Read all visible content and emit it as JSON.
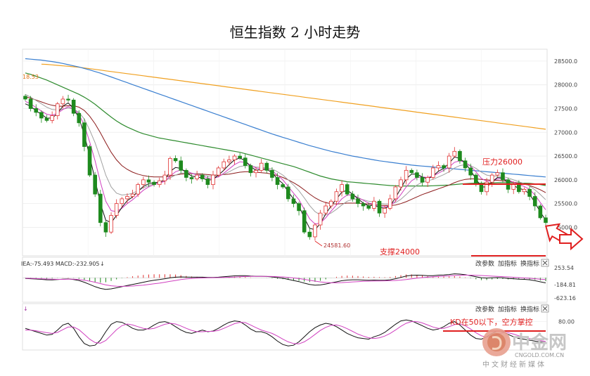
{
  "title": "恒生指数 2 小时走势",
  "colors": {
    "up": "#e03030",
    "down": "#1e8a1e",
    "ma_black": "#111111",
    "ma_magenta": "#d040c0",
    "ma_gray": "#a0a0a0",
    "ma_darkred": "#8b1a1a",
    "ma_green": "#2e8b2e",
    "ma_blue": "#3a7fd0",
    "ma_orange": "#f0a020",
    "annotation": "#e02020"
  },
  "main_panel": {
    "corner_value": "18.53",
    "y_ticks": [
      "28500.0",
      "28000.0",
      "27500.0",
      "27000.0",
      "26500.0",
      "26000.0",
      "25500.0",
      "25000.0"
    ],
    "ylim": [
      24400,
      28750
    ],
    "low_label": "24581.60",
    "resistance_label": "压力26000",
    "resistance_level": 25980,
    "support_label": "支撑24000"
  },
  "macd_panel": {
    "legend": "IEA:-75.493  MACD:-232.905",
    "buttons": [
      "改参数",
      "加指标",
      "换指标"
    ],
    "y_ticks": [
      "253.54",
      "-184.81",
      "-623.16"
    ]
  },
  "kdj_panel": {
    "buttons": [
      "改参数",
      "加指标",
      "换指标"
    ],
    "y_ticks": [
      "80.00"
    ],
    "annotation": "KD在50以下，空方掌控"
  },
  "watermark": {
    "name": "中金网",
    "domain": "CNGOLD.COM.CN",
    "subtitle": "中文财经新媒体"
  },
  "chart_data": {
    "type": "candlestick",
    "title": "恒生指数 2 小时走势",
    "close": [
      27700,
      27500,
      27420,
      27300,
      27250,
      27350,
      27600,
      27700,
      27680,
      27400,
      27200,
      26700,
      26100,
      25700,
      25100,
      24900,
      25250,
      25500,
      25600,
      25650,
      25700,
      25900,
      26000,
      25950,
      25900,
      25980,
      26100,
      26450,
      26400,
      26200,
      26050,
      26020,
      26100,
      26020,
      25900,
      26100,
      26250,
      26380,
      26420,
      26500,
      26460,
      26300,
      26150,
      26200,
      26350,
      26200,
      26050,
      25900,
      25850,
      25600,
      25500,
      25350,
      24900,
      24800,
      25050,
      25300,
      25450,
      25550,
      25750,
      25900,
      25700,
      25600,
      25500,
      25450,
      25400,
      25550,
      25300,
      25400,
      25600,
      25850,
      26000,
      26200,
      26150,
      26050,
      25950,
      26050,
      26250,
      26300,
      26250,
      26500,
      26600,
      26400,
      26250,
      26100,
      25900,
      25750,
      25950,
      26100,
      26150,
      26000,
      25800,
      25900,
      25750,
      25800,
      25650,
      25450,
      25200,
      25100
    ],
    "ma_black": [
      27600,
      27550,
      27450,
      27380,
      27300,
      27300,
      27400,
      27550,
      27620,
      27500,
      27300,
      26950,
      26500,
      26000,
      25500,
      25150,
      25100,
      25250,
      25420,
      25560,
      25640,
      25760,
      25860,
      25920,
      25940,
      25950,
      26000,
      26180,
      26260,
      26240,
      26150,
      26080,
      26060,
      26040,
      25990,
      26010,
      26100,
      26200,
      26320,
      26420,
      26460,
      26400,
      26280,
      26200,
      26220,
      26220,
      26150,
      26020,
      25920,
      25750,
      25600,
      25450,
      25200,
      24980,
      24950,
      25080,
      25280,
      25450,
      25600,
      25740,
      25780,
      25700,
      25600,
      25510,
      25450,
      25470,
      25420,
      25400,
      25450,
      25620,
      25820,
      26020,
      26120,
      26120,
      26060,
      26020,
      26080,
      26180,
      26240,
      26350,
      26480,
      26450,
      26350,
      26200,
      26020,
      25850,
      25850,
      25950,
      26050,
      26040,
      25930,
      25880,
      25820,
      25790,
      25700,
      25520,
      25320,
      25150
    ],
    "ma_magenta": [
      27650,
      27600,
      27520,
      27450,
      27380,
      27360,
      27400,
      27480,
      27540,
      27500,
      27380,
      27150,
      26800,
      26400,
      25950,
      25550,
      25350,
      25330,
      25400,
      25500,
      25580,
      25680,
      25780,
      25850,
      25900,
      25930,
      25970,
      26080,
      26170,
      26210,
      26190,
      26140,
      26100,
      26080,
      26040,
      26030,
      26060,
      26140,
      26230,
      26320,
      26380,
      26370,
      26310,
      26250,
      26230,
      26230,
      26190,
      26100,
      26000,
      25860,
      25720,
      25580,
      25380,
      25180,
      25070,
      25090,
      25200,
      25340,
      25470,
      25600,
      25680,
      25680,
      25630,
      25570,
      25510,
      25490,
      25450,
      25430,
      25450,
      25550,
      25690,
      25850,
      25980,
      26050,
      26060,
      26050,
      26080,
      26140,
      26200,
      26270,
      26370,
      26400,
      26370,
      26290,
      26170,
      26030,
      25970,
      25980,
      26020,
      26030,
      25990,
      25950,
      25900,
      25860,
      25800,
      25680,
      25520,
      25370
    ],
    "ma_gray": [
      27800,
      27740,
      27670,
      27600,
      27530,
      27480,
      27470,
      27490,
      27510,
      27490,
      27420,
      27280,
      27050,
      26780,
      26450,
      26100,
      25850,
      25720,
      25680,
      25690,
      25720,
      25770,
      25830,
      25880,
      25920,
      25950,
      25980,
      26040,
      26100,
      26140,
      26150,
      26140,
      26120,
      26100,
      26080,
      26070,
      26080,
      26120,
      26170,
      26230,
      26280,
      26300,
      26290,
      26270,
      26260,
      26250,
      26230,
      26170,
      26100,
      26000,
      25890,
      25770,
      25620,
      25460,
      25330,
      25260,
      25260,
      25300,
      25380,
      25470,
      25550,
      25590,
      25600,
      25580,
      25550,
      25530,
      25510,
      25490,
      25490,
      25520,
      25590,
      25690,
      25800,
      25890,
      25950,
      25980,
      26010,
      26060,
      26110,
      26170,
      26250,
      26300,
      26320,
      26300,
      26240,
      26160,
      26100,
      26080,
      26080,
      26070,
      26040,
      26000,
      25960,
      25920,
      25870,
      25790,
      25690,
      25580
    ],
    "ma_darkred": [
      27750,
      27720,
      27680,
      27640,
      27600,
      27570,
      27550,
      27550,
      27560,
      27560,
      27530,
      27460,
      27340,
      27180,
      26990,
      26780,
      26580,
      26420,
      26300,
      26220,
      26160,
      26120,
      26090,
      26070,
      26060,
      26060,
      26060,
      26080,
      26100,
      26120,
      26130,
      26130,
      26130,
      26120,
      26110,
      26100,
      26100,
      26110,
      26120,
      26140,
      26160,
      26170,
      26170,
      26160,
      26150,
      26140,
      26120,
      26090,
      26050,
      26000,
      25940,
      25870,
      25790,
      25700,
      25620,
      25560,
      25520,
      25500,
      25490,
      25500,
      25510,
      25510,
      25510,
      25500,
      25490,
      25480,
      25470,
      25460,
      25460,
      25470,
      25500,
      25540,
      25590,
      25640,
      25690,
      25730,
      25770,
      25810,
      25850,
      25890,
      25940,
      25980,
      26010,
      26020,
      26020,
      26010,
      26000,
      25990,
      25990,
      25980,
      25970,
      25950,
      25930,
      25910,
      25880,
      25840,
      25790,
      25730
    ],
    "ma_green": [
      28250,
      28220,
      28180,
      28140,
      28100,
      28050,
      28000,
      27950,
      27900,
      27850,
      27800,
      27740,
      27670,
      27590,
      27500,
      27410,
      27320,
      27240,
      27170,
      27110,
      27060,
      27010,
      26970,
      26940,
      26910,
      26880,
      26860,
      26840,
      26820,
      26800,
      26780,
      26760,
      26740,
      26720,
      26700,
      26680,
      26660,
      26640,
      26620,
      26600,
      26580,
      26550,
      26520,
      26490,
      26460,
      26430,
      26400,
      26370,
      26340,
      26310,
      26280,
      26240,
      26200,
      26160,
      26120,
      26080,
      26050,
      26020,
      26000,
      25980,
      25960,
      25950,
      25940,
      25930,
      25920,
      25910,
      25900,
      25890,
      25880,
      25875,
      25870,
      25870,
      25870,
      25870,
      25870,
      25870,
      25875,
      25880,
      25885,
      25890,
      25900,
      25910,
      25920,
      25925,
      25930,
      25930,
      25930,
      25935,
      25940,
      25940,
      25940,
      25940,
      25935,
      25930,
      25925,
      25915,
      25900,
      25880
    ],
    "ma_blue": [
      28550,
      28540,
      28530,
      28520,
      28505,
      28490,
      28470,
      28450,
      28425,
      28400,
      28375,
      28345,
      28315,
      28280,
      28245,
      28205,
      28165,
      28125,
      28085,
      28045,
      28005,
      27965,
      27925,
      27885,
      27845,
      27805,
      27765,
      27725,
      27685,
      27645,
      27605,
      27565,
      27525,
      27485,
      27445,
      27405,
      27365,
      27325,
      27285,
      27245,
      27205,
      27165,
      27125,
      27085,
      27045,
      27005,
      26965,
      26930,
      26895,
      26860,
      26825,
      26790,
      26755,
      26720,
      26690,
      26660,
      26630,
      26600,
      26575,
      26550,
      26525,
      26500,
      26480,
      26460,
      26440,
      26420,
      26400,
      26385,
      26370,
      26355,
      26340,
      26325,
      26310,
      26300,
      26290,
      26280,
      26270,
      26260,
      26250,
      26240,
      26230,
      26220,
      26210,
      26200,
      26190,
      26180,
      26170,
      26160,
      26150,
      26140,
      26130,
      26120,
      26110,
      26100,
      26090,
      26080,
      26070,
      26060
    ],
    "ma_orange": [
      28450,
      28445,
      28440,
      28435,
      28430,
      28420,
      28410,
      28400,
      28390,
      28380,
      28370,
      28355,
      28340,
      28325,
      28310,
      28295,
      28280,
      28265,
      28250,
      28235,
      28220,
      28205,
      28190,
      28175,
      28160,
      28145,
      28130,
      28115,
      28100,
      28085,
      28070,
      28055,
      28040,
      28025,
      28010,
      27995,
      27980,
      27965,
      27950,
      27935,
      27920,
      27905,
      27890,
      27875,
      27860,
      27845,
      27830,
      27815,
      27800,
      27785,
      27770,
      27755,
      27740,
      27725,
      27710,
      27695,
      27680,
      27665,
      27650,
      27635,
      27620,
      27605,
      27590,
      27575,
      27560,
      27545,
      27530,
      27515,
      27500,
      27485,
      27470,
      27455,
      27440,
      27425,
      27410,
      27395,
      27380,
      27365,
      27350,
      27335,
      27320,
      27305,
      27290,
      27275,
      27260,
      27245,
      27230,
      27215,
      27200,
      27185,
      27170,
      27155,
      27140,
      27125,
      27110,
      27095,
      27080,
      27065
    ],
    "macd": {
      "dif": [
        -30,
        -40,
        -55,
        -70,
        -90,
        -95,
        -80,
        -60,
        -50,
        -75,
        -120,
        -200,
        -300,
        -400,
        -480,
        -520,
        -500,
        -450,
        -400,
        -350,
        -300,
        -250,
        -200,
        -150,
        -110,
        -80,
        -40,
        0,
        30,
        40,
        35,
        30,
        30,
        30,
        20,
        20,
        30,
        50,
        70,
        90,
        100,
        95,
        80,
        70,
        70,
        60,
        40,
        10,
        -20,
        -70,
        -120,
        -170,
        -240,
        -300,
        -330,
        -320,
        -280,
        -230,
        -180,
        -130,
        -100,
        -90,
        -90,
        -100,
        -110,
        -100,
        -110,
        -110,
        -90,
        -40,
        20,
        80,
        110,
        120,
        110,
        100,
        100,
        120,
        130,
        150,
        180,
        170,
        140,
        100,
        50,
        0,
        -10,
        0,
        10,
        0,
        -30,
        -40,
        -60,
        -70,
        -90,
        -130,
        -180,
        -230
      ],
      "dea": [
        -20,
        -25,
        -35,
        -45,
        -55,
        -65,
        -70,
        -70,
        -65,
        -65,
        -80,
        -110,
        -150,
        -200,
        -260,
        -320,
        -360,
        -380,
        -385,
        -380,
        -370,
        -350,
        -330,
        -300,
        -270,
        -240,
        -200,
        -160,
        -120,
        -80,
        -50,
        -30,
        -15,
        -5,
        0,
        5,
        10,
        15,
        25,
        35,
        50,
        60,
        65,
        68,
        68,
        66,
        62,
        52,
        40,
        20,
        -5,
        -35,
        -70,
        -110,
        -150,
        -185,
        -210,
        -225,
        -225,
        -215,
        -200,
        -185,
        -170,
        -160,
        -150,
        -145,
        -140,
        -135,
        -130,
        -120,
        -100,
        -75,
        -45,
        -15,
        10,
        30,
        45,
        60,
        75,
        90,
        105,
        115,
        120,
        120,
        115,
        105,
        90,
        75,
        65,
        55,
        40,
        25,
        10,
        -5,
        -20,
        -40,
        -60,
        -80
      ]
    },
    "kdj": {
      "k": [
        60,
        55,
        50,
        45,
        40,
        42,
        55,
        70,
        75,
        60,
        35,
        15,
        8,
        10,
        25,
        50,
        72,
        80,
        78,
        70,
        60,
        55,
        55,
        60,
        70,
        78,
        80,
        75,
        65,
        55,
        48,
        45,
        50,
        55,
        50,
        52,
        60,
        70,
        78,
        82,
        80,
        70,
        58,
        50,
        50,
        45,
        35,
        22,
        12,
        8,
        10,
        20,
        35,
        50,
        62,
        70,
        75,
        72,
        65,
        55,
        45,
        38,
        32,
        30,
        28,
        35,
        40,
        48,
        60,
        72,
        82,
        85,
        82,
        75,
        68,
        60,
        55,
        58,
        65,
        75,
        80,
        70,
        55,
        40,
        30,
        28,
        35,
        45,
        52,
        50,
        42,
        35,
        30,
        28,
        25,
        22,
        20,
        18
      ],
      "d": [
        55,
        55,
        53,
        50,
        47,
        45,
        48,
        56,
        64,
        64,
        56,
        42,
        28,
        18,
        16,
        24,
        40,
        56,
        68,
        73,
        70,
        65,
        60,
        58,
        60,
        66,
        72,
        75,
        73,
        67,
        60,
        54,
        50,
        50,
        51,
        51,
        54,
        60,
        67,
        74,
        78,
        77,
        70,
        62,
        55,
        50,
        45,
        37,
        28,
        20,
        15,
        14,
        20,
        30,
        42,
        54,
        63,
        69,
        70,
        66,
        59,
        51,
        43,
        37,
        32,
        30,
        32,
        37,
        45,
        55,
        66,
        75,
        80,
        80,
        76,
        70,
        64,
        60,
        60,
        65,
        71,
        73,
        68,
        58,
        47,
        38,
        34,
        36,
        42,
        47,
        47,
        43,
        38,
        34,
        30,
        27,
        24,
        21
      ]
    }
  }
}
